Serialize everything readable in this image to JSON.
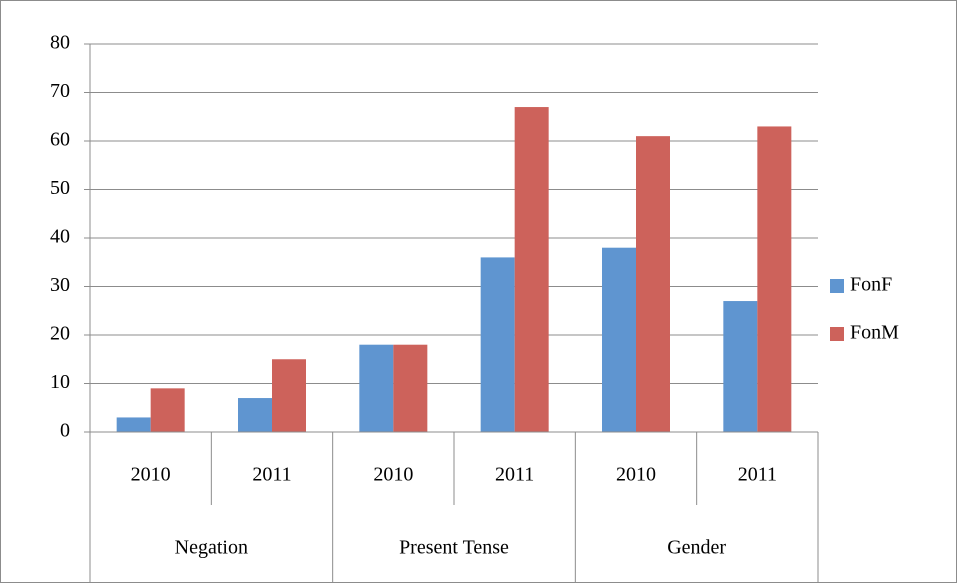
{
  "chart_data": {
    "type": "bar",
    "categories": [
      "2010",
      "2011",
      "2010",
      "2011",
      "2010",
      "2011"
    ],
    "groups": [
      "Negation",
      "Present Tense",
      "Gender"
    ],
    "series": [
      {
        "name": "FonF",
        "color": "#5f95d0",
        "values": [
          3,
          7,
          18,
          36,
          38,
          27
        ]
      },
      {
        "name": "FonM",
        "color": "#cd625b",
        "values": [
          9,
          15,
          18,
          67,
          61,
          63
        ]
      }
    ],
    "ylim": [
      0,
      80
    ],
    "yticks": [
      0,
      10,
      20,
      30,
      40,
      50,
      60,
      70,
      80
    ],
    "grid": true,
    "legend": "right"
  }
}
